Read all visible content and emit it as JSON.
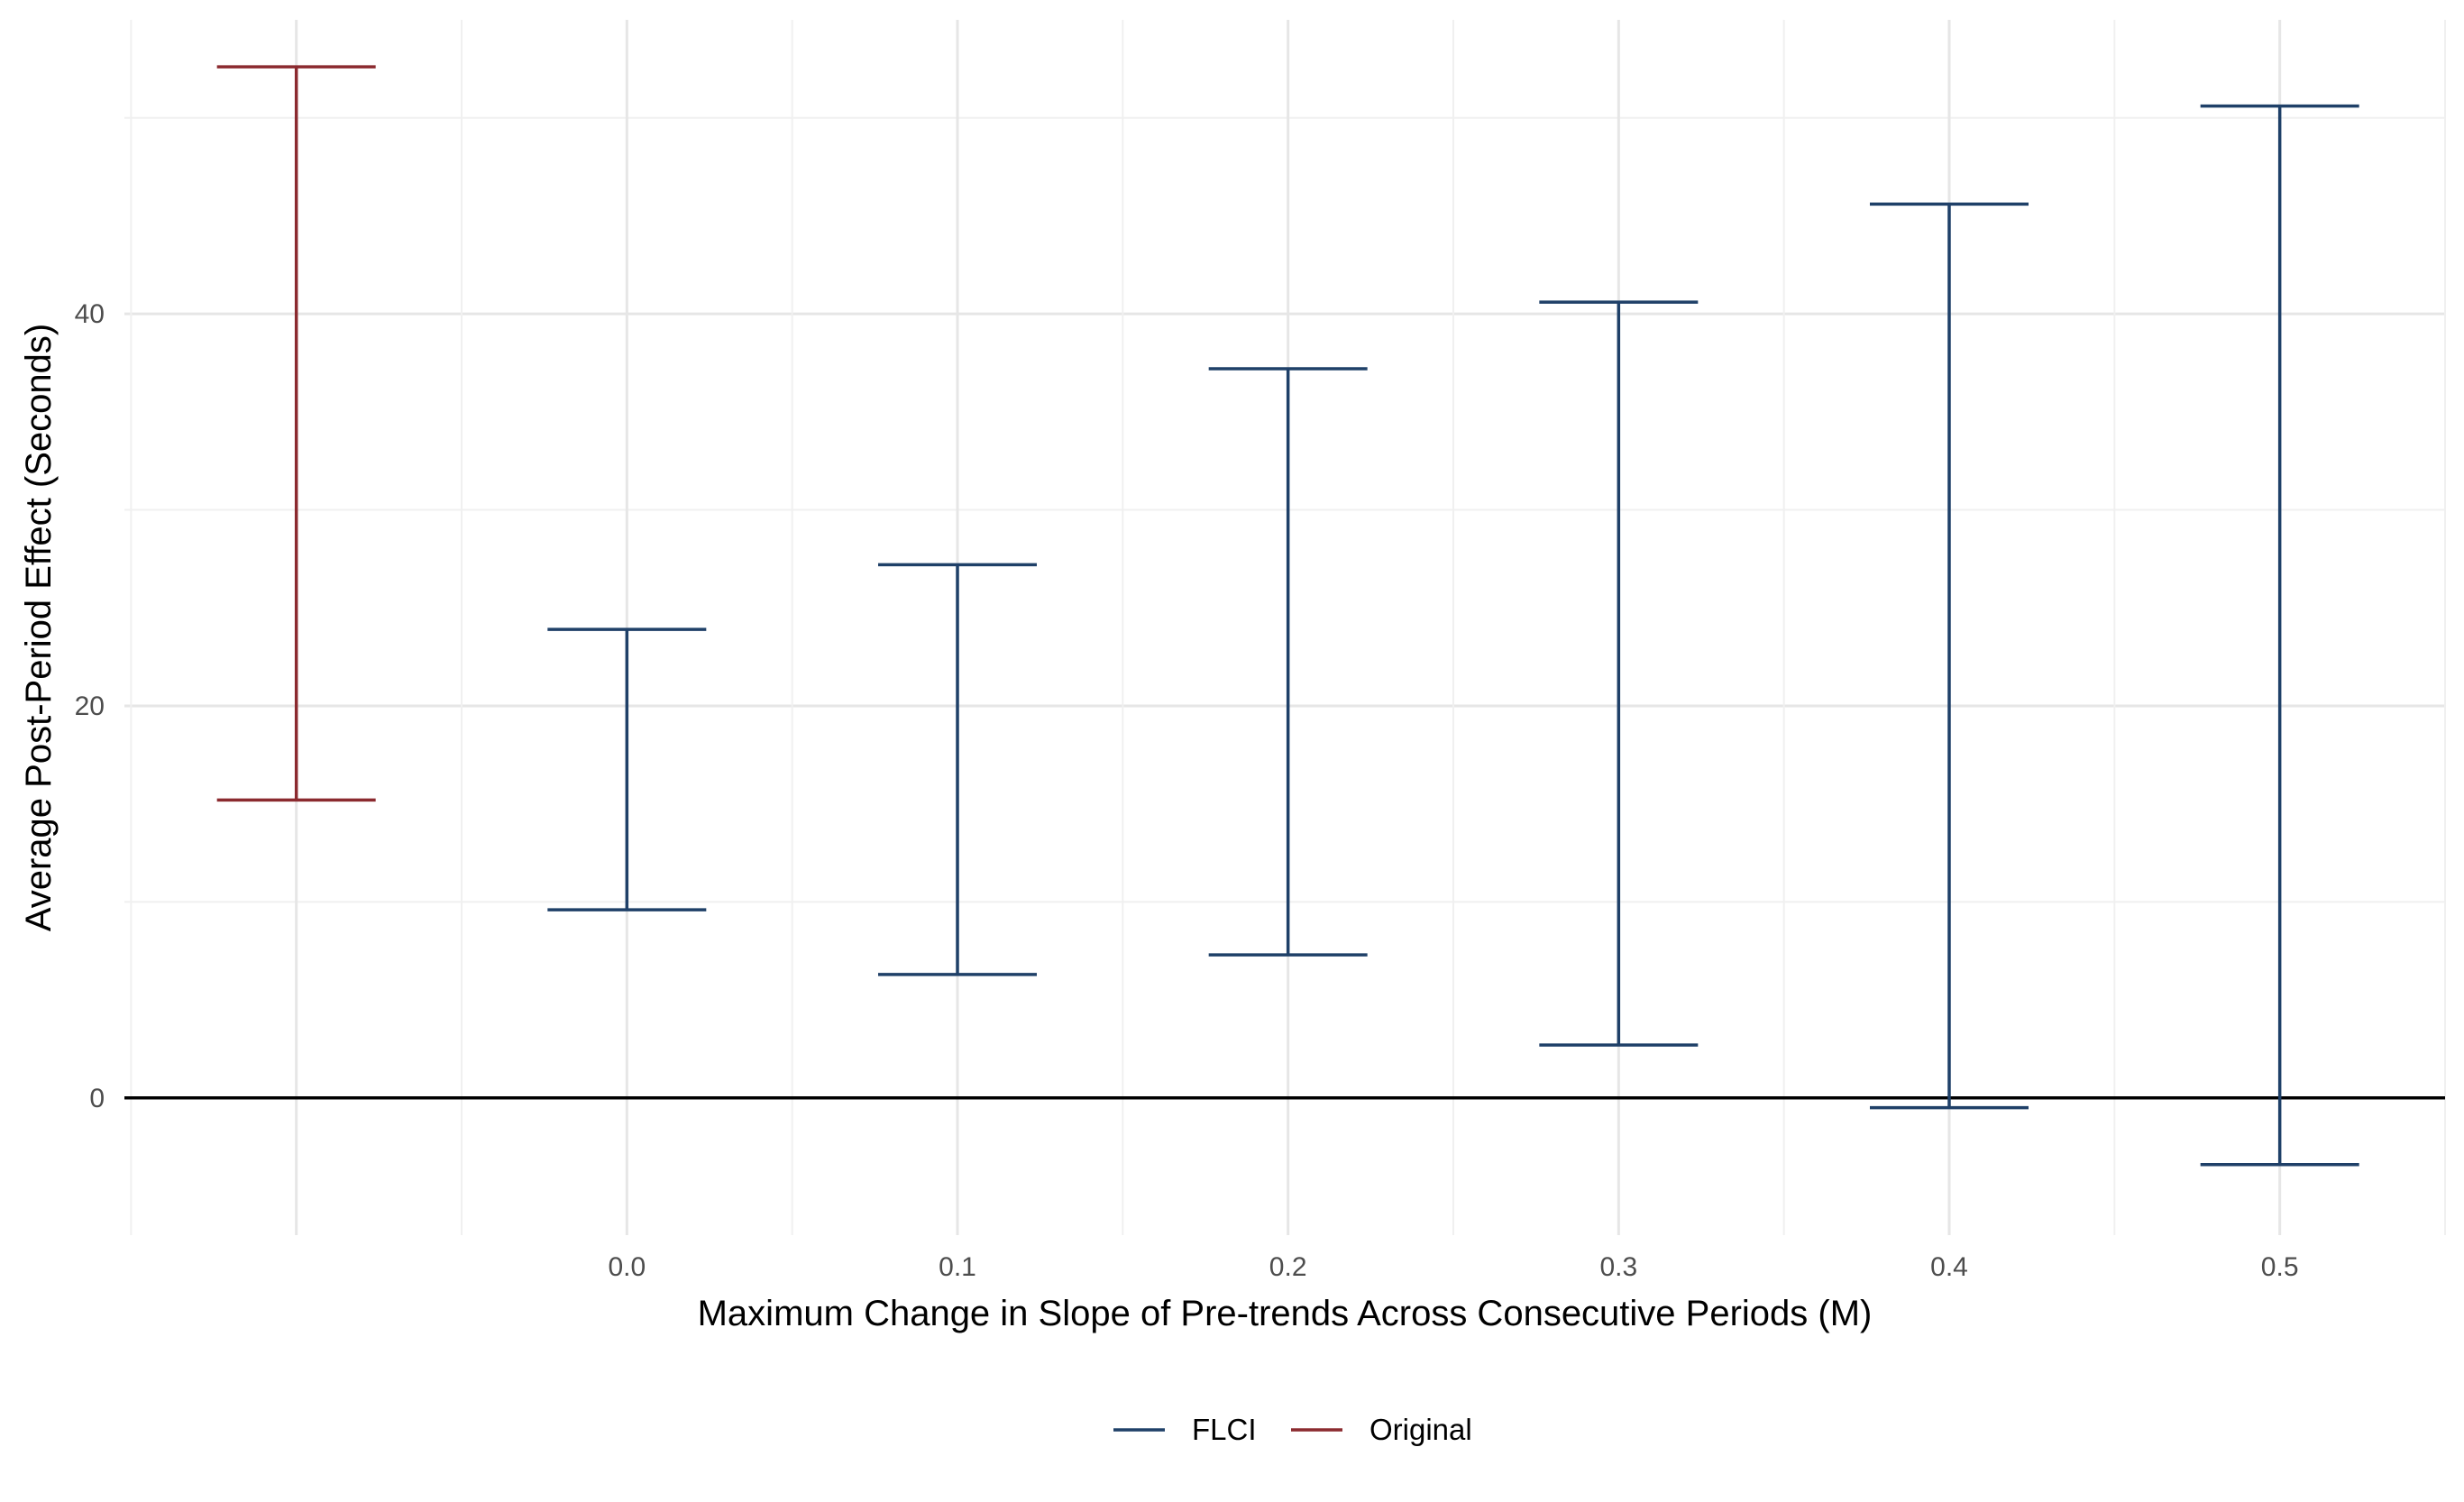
{
  "chart_data": {
    "type": "errorbar",
    "xlabel": "Maximum Change in Slope of Pre-trends Across Consecutive Periods (M)",
    "ylabel": "Average Post-Period Effect (Seconds)",
    "ylim": [
      -7,
      55
    ],
    "y_ticks": [
      "0",
      "20",
      "40"
    ],
    "y_tick_values": [
      0,
      20,
      40
    ],
    "x_ticks": [
      "0.0",
      "0.1",
      "0.2",
      "0.3",
      "0.4",
      "0.5"
    ],
    "x_tick_values": [
      0.0,
      0.1,
      0.2,
      0.3,
      0.4,
      0.5
    ],
    "xlim": [
      -0.152,
      0.55
    ],
    "grid": true,
    "reference_line_y": 0,
    "legend_position": "bottom",
    "series": [
      {
        "name": "FLCI",
        "color": "#1f4068",
        "points": [
          {
            "x": 0.0,
            "lb": 9.6,
            "ub": 23.9
          },
          {
            "x": 0.1,
            "lb": 6.3,
            "ub": 27.2
          },
          {
            "x": 0.2,
            "lb": 7.3,
            "ub": 37.2
          },
          {
            "x": 0.3,
            "lb": 2.7,
            "ub": 40.6
          },
          {
            "x": 0.4,
            "lb": -0.5,
            "ub": 45.6
          },
          {
            "x": 0.5,
            "lb": -3.4,
            "ub": 50.6
          }
        ]
      },
      {
        "name": "Original",
        "color": "#8b2a2f",
        "points": [
          {
            "x": -0.1,
            "lb": 15.2,
            "ub": 52.6
          }
        ]
      }
    ]
  }
}
